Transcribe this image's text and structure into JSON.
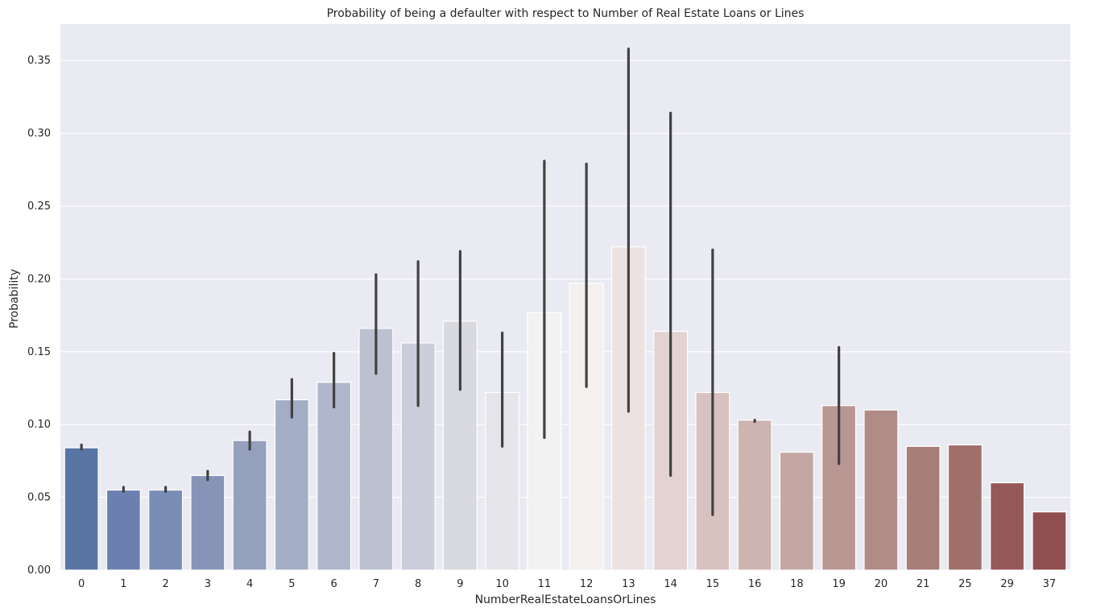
{
  "chart_data": {
    "type": "bar",
    "title": "Probability of being a defaulter with respect to Number of Real Estate Loans or Lines",
    "xlabel": "NumberRealEstateLoansOrLines",
    "ylabel": "Probability",
    "ylim": [
      0,
      0.375
    ],
    "yticks": [
      "0.00",
      "0.05",
      "0.10",
      "0.15",
      "0.20",
      "0.25",
      "0.30",
      "0.35"
    ],
    "grid": true,
    "categories": [
      "0",
      "1",
      "2",
      "3",
      "4",
      "5",
      "6",
      "7",
      "8",
      "9",
      "10",
      "11",
      "12",
      "13",
      "14",
      "15",
      "16",
      "18",
      "19",
      "20",
      "21",
      "25",
      "29",
      "37"
    ],
    "values": [
      0.084,
      0.055,
      0.055,
      0.065,
      0.089,
      0.117,
      0.129,
      0.166,
      0.156,
      0.171,
      0.122,
      0.177,
      0.197,
      0.222,
      0.164,
      0.122,
      0.103,
      0.081,
      0.113,
      0.11,
      0.085,
      0.086,
      0.06,
      0.04
    ],
    "error_low": [
      0.083,
      0.054,
      0.054,
      0.062,
      0.083,
      0.105,
      0.112,
      0.135,
      0.113,
      0.124,
      0.085,
      0.091,
      0.126,
      0.109,
      0.065,
      0.038,
      0.102,
      null,
      0.073,
      null,
      null,
      null,
      null,
      null
    ],
    "error_high": [
      0.086,
      0.057,
      0.057,
      0.068,
      0.095,
      0.131,
      0.149,
      0.203,
      0.212,
      0.219,
      0.163,
      0.281,
      0.279,
      0.358,
      0.314,
      0.22,
      0.103,
      null,
      0.153,
      null,
      null,
      null,
      null,
      null
    ],
    "colors": [
      "#5975a4",
      "#6b80b0",
      "#7a8db5",
      "#8794b8",
      "#95a0bd",
      "#a3adc5",
      "#b0b6cb",
      "#bcc1d1",
      "#cccdda",
      "#d9dae0",
      "#e6e5ea",
      "#f2f2f2",
      "#f4f0ef",
      "#ede2e2",
      "#e3d2d0",
      "#d7c2c0",
      "#cdb4b1",
      "#c4a7a3",
      "#b89793",
      "#b18c87",
      "#a77d78",
      "#9f706a",
      "#95595a",
      "#8f4e4f"
    ]
  }
}
